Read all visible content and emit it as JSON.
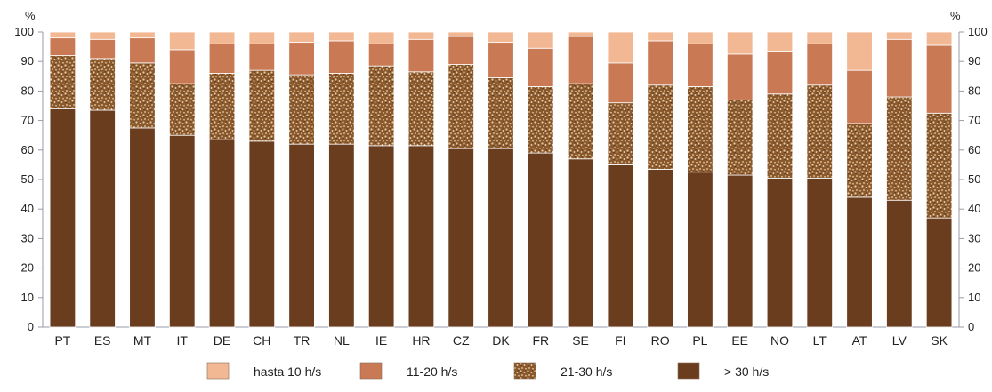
{
  "chart_data": {
    "type": "bar",
    "stacked": true,
    "unit_label_left": "%",
    "unit_label_right": "%",
    "ylim": [
      0,
      100
    ],
    "yticks": [
      0,
      10,
      20,
      30,
      40,
      50,
      60,
      70,
      80,
      90,
      100
    ],
    "categories": [
      "PT",
      "ES",
      "MT",
      "IT",
      "DE",
      "CH",
      "TR",
      "NL",
      "IE",
      "HR",
      "CZ",
      "DK",
      "FR",
      "SE",
      "FI",
      "RO",
      "PL",
      "EE",
      "NO",
      "LT",
      "AT",
      "LV",
      "SK"
    ],
    "series": [
      {
        "name": "> 30 h/s",
        "color": "#6b3d1f",
        "pattern": "solid",
        "values": [
          74,
          73.5,
          67.5,
          65,
          63.5,
          63,
          62,
          62,
          61.5,
          61.5,
          60.5,
          60.5,
          59,
          57,
          55,
          53.5,
          52.5,
          51.5,
          50.5,
          50.5,
          44,
          43,
          37
        ]
      },
      {
        "name": "21-30 h/s",
        "color": "#8a5a2e",
        "pattern": "speckle",
        "values": [
          18,
          17.5,
          22,
          17.5,
          22.5,
          24,
          23.5,
          24,
          27,
          25,
          28.5,
          24,
          22.5,
          25.5,
          21,
          28.5,
          29,
          25.5,
          28.5,
          31.5,
          25,
          35,
          35.5
        ]
      },
      {
        "name": "11-20 h/s",
        "color": "#c97a55",
        "pattern": "solid",
        "values": [
          6,
          6.5,
          8.5,
          11.5,
          10,
          9,
          11,
          11,
          7.5,
          11,
          9.5,
          12,
          13,
          16,
          13.5,
          15,
          14.5,
          15.5,
          14.5,
          14,
          18,
          19.5,
          23
        ]
      },
      {
        "name": "hasta 10 h/s",
        "color": "#f2b893",
        "pattern": "solid",
        "values": [
          2,
          2.5,
          2,
          6,
          4,
          4,
          3.5,
          3,
          4,
          2.5,
          1.5,
          3.5,
          5.5,
          1.5,
          10.5,
          3,
          4,
          7.5,
          6.5,
          4,
          13,
          2.5,
          4.5
        ]
      }
    ],
    "legend": {
      "placement": "bottom",
      "items": [
        "hasta 10 h/s",
        "11-20 h/s",
        "21-30 h/s",
        "> 30 h/s"
      ]
    },
    "grid": false
  }
}
